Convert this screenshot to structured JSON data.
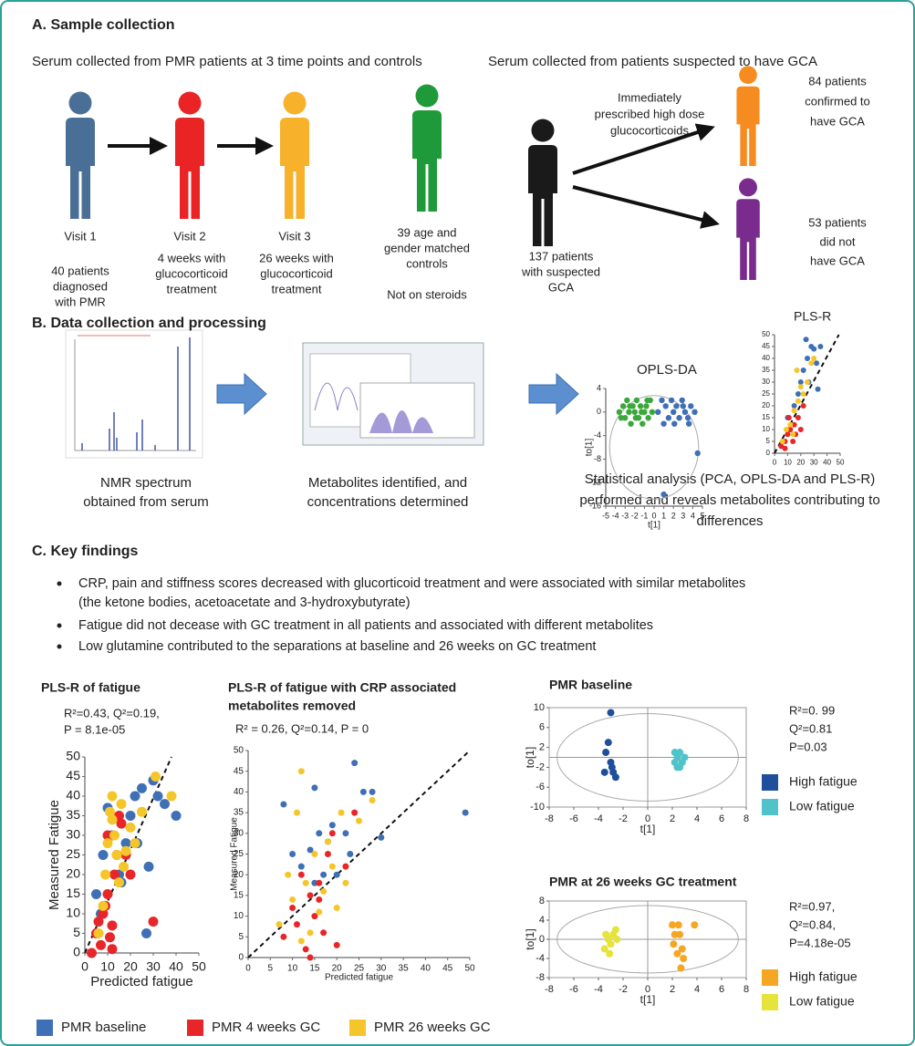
{
  "section_a": {
    "title": "A. Sample collection",
    "subtitle_pmr": "Serum collected from PMR patients at 3 time points and controls",
    "subtitle_gca": "Serum collected from patients suspected to have GCA",
    "visits": [
      {
        "label": "Visit 1",
        "lines": [
          "40 patients",
          "diagnosed",
          "with PMR"
        ]
      },
      {
        "label": "Visit 2",
        "lines": [
          "4 weeks with",
          "glucocorticoid",
          "treatment"
        ]
      },
      {
        "label": "Visit 3",
        "lines": [
          "26 weeks with",
          "glucocorticoid",
          "treatment"
        ]
      }
    ],
    "controls": {
      "lines": [
        "39 age and",
        "gender matched",
        "controls"
      ],
      "note": "Not on steroids"
    },
    "suspected": {
      "lines": [
        "137 patients",
        "with suspected",
        "GCA"
      ]
    },
    "treatment": {
      "lines": [
        "Immediately",
        "prescribed high dose",
        "glucocorticoids"
      ]
    },
    "confirmed": {
      "lines": [
        "84 patients",
        "confirmed to",
        "have GCA"
      ]
    },
    "not_confirmed": {
      "lines": [
        "53 patients",
        "did not",
        "have GCA"
      ]
    }
  },
  "section_b": {
    "title": "B. Data collection and processing",
    "steps": [
      {
        "lines": [
          "NMR spectrum",
          "obtained  from serum"
        ]
      },
      {
        "lines": [
          "Metabolites identified, and",
          "concentrations determined"
        ]
      },
      {
        "lines": [
          "Statistical analysis (PCA, OPLS-DA and PLS-R)",
          "performed and reveals metabolites contributing to",
          "differences"
        ]
      }
    ],
    "opls_da": {
      "type": "scatter",
      "title": [
        "OPLS-DA"
      ],
      "xlabel": "t[1]",
      "ylabel": "to[1]",
      "xlim": [
        -5,
        5
      ],
      "xticks": [
        -5,
        -4,
        -3,
        -2,
        -1,
        0,
        1,
        2,
        3,
        4,
        5
      ],
      "ylim": [
        -16,
        4
      ],
      "yticks": [
        4,
        0,
        -4,
        -8,
        -12,
        -16
      ],
      "series": [
        {
          "color": "#3aa83a",
          "x": [
            -3.6,
            -3.2,
            -3,
            -2.8,
            -2.6,
            -2.4,
            -2.2,
            -2,
            -1.8,
            -1.6,
            -1.4,
            -1.2,
            -1,
            -0.8,
            -0.6,
            -0.4,
            -0.2,
            -3.4,
            -2.5,
            -1.9,
            -1.3,
            -0.7
          ],
          "values": [
            0,
            1,
            -1,
            2,
            0,
            -2,
            1,
            0,
            2,
            -1,
            1,
            -2,
            0,
            1,
            -1,
            2,
            0,
            -1,
            1,
            -1,
            0,
            2
          ]
        },
        {
          "color": "#3f6fb5",
          "x": [
            0.4,
            0.8,
            1.2,
            1.5,
            1.8,
            2,
            2.3,
            2.6,
            2.9,
            3.2,
            3.5,
            3.8,
            4.2,
            1,
            2.1,
            3,
            3.6,
            4.5,
            1
          ],
          "values": [
            0,
            2,
            1,
            -1,
            2,
            0,
            1,
            -1,
            2,
            0,
            -1,
            1,
            0,
            -2,
            -2,
            1,
            -2,
            -7,
            -14
          ]
        }
      ]
    },
    "pls_r": {
      "type": "scatter",
      "title": [
        "PLS-R"
      ],
      "xlim": [
        0,
        50
      ],
      "xticks": [
        0,
        10,
        20,
        30,
        40,
        50
      ],
      "ylim": [
        0,
        50
      ],
      "yticks": [
        0,
        5,
        10,
        15,
        20,
        25,
        30,
        35,
        40,
        45,
        50
      ],
      "series": [
        {
          "color": "#3f6fb5",
          "x": [
            10,
            15,
            20,
            22,
            25,
            28,
            30,
            32,
            35,
            18,
            26,
            12,
            33,
            24
          ],
          "values": [
            15,
            20,
            30,
            35,
            40,
            45,
            44,
            38,
            45,
            25,
            30,
            10,
            27,
            48
          ]
        },
        {
          "color": "#e8262a",
          "x": [
            5,
            8,
            10,
            12,
            14,
            15,
            18,
            20,
            22,
            8,
            16,
            11
          ],
          "values": [
            3,
            5,
            8,
            10,
            5,
            12,
            15,
            10,
            20,
            2,
            8,
            15
          ]
        },
        {
          "color": "#f5c62a",
          "x": [
            6,
            9,
            12,
            15,
            18,
            20,
            22,
            25,
            28,
            14,
            17,
            30
          ],
          "values": [
            5,
            10,
            12,
            18,
            22,
            28,
            25,
            30,
            38,
            8,
            35,
            40
          ]
        }
      ]
    }
  },
  "section_c": {
    "title": "C. Key findings",
    "findings": [
      [
        "CRP, pain and stiffness scores decreased with glucorticoid treatment and were associated with similar metabolites",
        "(the ketone bodies, acetoacetate and 3-hydroxybutyrate)"
      ],
      [
        "Fatigue did not decease with GC treatment in all patients and associated with different metabolites"
      ],
      [
        "Low glutamine contributed to the separations at baseline and 26 weeks on GC treatment"
      ]
    ],
    "charts": [
      {
        "type": "scatter",
        "title": [
          "PLS-R of fatigue"
        ],
        "stats": [
          "R²=0.43, Q²=0.19,",
          "P = 8.1e-05"
        ],
        "xlabel": "Predicted fatigue",
        "ylabel": "Measured Fatigue",
        "xlim": [
          0,
          50
        ],
        "xticks": [
          0,
          10,
          20,
          30,
          40,
          50
        ],
        "ylim": [
          0,
          50
        ],
        "yticks": [
          0,
          5,
          10,
          15,
          20,
          25,
          30,
          35,
          40,
          45,
          50
        ],
        "series": [
          {
            "name": "PMR baseline",
            "color": "#3f6fb5",
            "x": [
              5,
              8,
              10,
              12,
              15,
              18,
              20,
              22,
              25,
              27,
              30,
              32,
              35,
              40,
              28,
              23,
              16,
              7
            ],
            "values": [
              15,
              25,
              37,
              30,
              20,
              28,
              35,
              40,
              42,
              5,
              44,
              40,
              38,
              35,
              22,
              28,
              18,
              10
            ]
          },
          {
            "name": "PMR 4 weeks GC",
            "color": "#e8262a",
            "x": [
              3,
              5,
              6,
              7,
              8,
              9,
              10,
              11,
              12,
              13,
              14,
              15,
              16,
              18,
              20,
              30,
              10,
              12
            ],
            "values": [
              0,
              5,
              8,
              2,
              10,
              12,
              15,
              4,
              7,
              20,
              25,
              35,
              33,
              25,
              20,
              8,
              30,
              1
            ]
          },
          {
            "name": "PMR 26 weeks GC",
            "color": "#f5c62a",
            "x": [
              6,
              8,
              9,
              10,
              11,
              12,
              13,
              14,
              15,
              16,
              17,
              18,
              20,
              22,
              25,
              31,
              38,
              12
            ],
            "values": [
              5,
              12,
              20,
              28,
              36,
              40,
              30,
              25,
              18,
              38,
              22,
              26,
              32,
              28,
              36,
              45,
              40,
              34
            ]
          }
        ]
      },
      {
        "type": "scatter",
        "title": [
          "PLS-R of  fatigue with CRP associated",
          "metabolites removed"
        ],
        "stats": [
          "R² = 0.26, Q²=0.14, P = 0"
        ],
        "xlabel": "Predicted fatigue",
        "ylabel": "Measured Fatigue",
        "xlim": [
          0,
          50
        ],
        "xticks": [
          0,
          5,
          10,
          15,
          20,
          25,
          30,
          35,
          40,
          45,
          50
        ],
        "ylim": [
          0,
          50
        ],
        "yticks": [
          0,
          5,
          10,
          15,
          20,
          25,
          30,
          35,
          40,
          45,
          50
        ],
        "series": [
          {
            "color": "#3f6fb5",
            "x": [
              8,
              10,
              12,
              14,
              15,
              16,
              17,
              18,
              19,
              20,
              22,
              23,
              24,
              26,
              28,
              30,
              15,
              49
            ],
            "values": [
              37,
              25,
              22,
              26,
              41,
              30,
              20,
              28,
              32,
              20,
              30,
              25,
              47,
              40,
              40,
              29,
              18,
              35
            ]
          },
          {
            "color": "#e8262a",
            "x": [
              8,
              10,
              11,
              12,
              13,
              14,
              15,
              16,
              17,
              18,
              20,
              22,
              24,
              14,
              16,
              19
            ],
            "values": [
              5,
              12,
              8,
              20,
              2,
              15,
              10,
              18,
              6,
              25,
              3,
              22,
              35,
              0,
              14,
              30
            ]
          },
          {
            "color": "#f5c62a",
            "x": [
              7,
              9,
              10,
              11,
              12,
              13,
              14,
              15,
              16,
              17,
              18,
              19,
              20,
              21,
              22,
              25,
              28,
              12
            ],
            "values": [
              8,
              20,
              14,
              35,
              4,
              18,
              6,
              25,
              11,
              16,
              28,
              22,
              12,
              35,
              18,
              33,
              38,
              45
            ]
          }
        ]
      },
      {
        "type": "scatter",
        "title": [
          "PMR baseline"
        ],
        "stats": [
          "R²=0. 99",
          "Q²=0.81",
          "P=0.03"
        ],
        "xlabel": "t[1]",
        "ylabel": "to[1]",
        "xlim": [
          -8,
          8
        ],
        "xticks": [
          -8,
          -6,
          -4,
          -2,
          0,
          2,
          4,
          6,
          8
        ],
        "ylim": [
          -10,
          10
        ],
        "yticks": [
          10,
          6,
          2,
          -2,
          -6,
          -10
        ],
        "series": [
          {
            "name": "High fatigue",
            "color": "#1f4e9c",
            "x": [
              -3,
              -3.2,
              -3.4,
              -3,
              -2.8,
              -3.5,
              -2.6,
              -2.9
            ],
            "values": [
              9,
              3,
              1,
              -1,
              -3,
              -3,
              -4,
              -2
            ]
          },
          {
            "name": "Low fatigue",
            "color": "#4fc3c9",
            "x": [
              2.2,
              2.6,
              2.4,
              2.8,
              2.2,
              2.6,
              3,
              2.4
            ],
            "values": [
              1,
              1,
              0,
              -1,
              -1,
              -2,
              0,
              -2
            ]
          }
        ]
      },
      {
        "type": "scatter",
        "title": [
          "PMR at 26 weeks GC treatment"
        ],
        "stats": [
          "R²=0.97,",
          "Q²=0.84,",
          "P=4.18e-05"
        ],
        "xlabel": "t[1]",
        "ylabel": "to[1]",
        "xlim": [
          -8,
          8
        ],
        "xticks": [
          -8,
          -6,
          -4,
          -2,
          0,
          2,
          4,
          6,
          8
        ],
        "ylim": [
          -8,
          8
        ],
        "yticks": [
          8,
          4,
          0,
          -4,
          -8
        ],
        "series": [
          {
            "name": "High fatigue",
            "color": "#f5a623",
            "x": [
              2,
              2.5,
              3.8,
              2.2,
              2.6,
              2.1,
              2.8,
              2.4,
              2.9,
              2.7
            ],
            "values": [
              3,
              3,
              3,
              1,
              1,
              -1,
              -2,
              -3,
              -4,
              -6
            ]
          },
          {
            "name": "Low fatigue",
            "color": "#e6e33a",
            "x": [
              -3.4,
              -2.6,
              -3.2,
              -3,
              -2.8,
              -3.5,
              -2.5,
              -3.1
            ],
            "values": [
              1,
              2,
              0,
              -1,
              1,
              -2,
              0,
              -3
            ]
          }
        ]
      }
    ]
  }
}
